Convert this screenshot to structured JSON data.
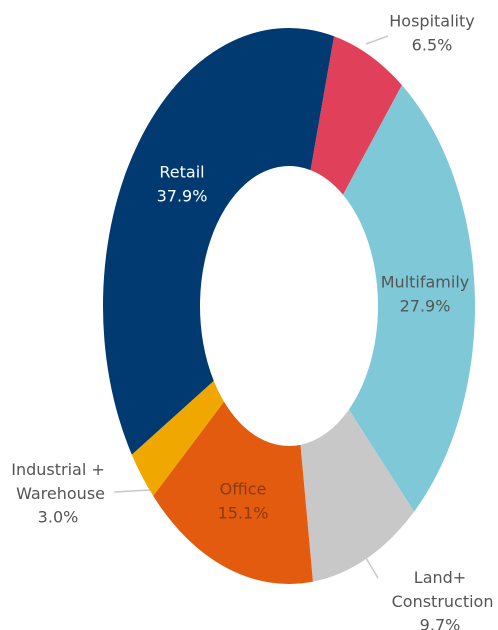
{
  "chart_data": {
    "type": "donut",
    "categories": [
      "Hospitality",
      "Multifamily",
      "Land+ Construction",
      "Office",
      "Industrial + Warehouse",
      "Retail"
    ],
    "values": [
      6.5,
      27.9,
      9.7,
      15.1,
      3.0,
      37.9
    ],
    "value_labels": [
      "6.5%",
      "27.9%",
      "9.7%",
      "15.1%",
      "3.0%",
      "37.9%"
    ],
    "colors": [
      "#e0405a",
      "#7ec8d8",
      "#c8c8c8",
      "#e35b0e",
      "#f0a800",
      "#003a70"
    ]
  }
}
